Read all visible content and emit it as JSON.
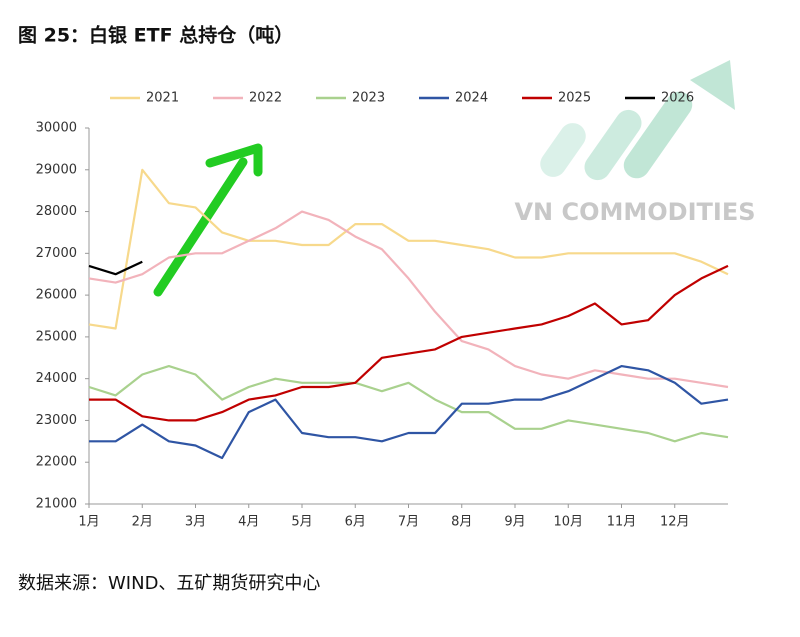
{
  "chart_data": {
    "type": "line",
    "title": "图 25：白银 ETF 总持仓（吨）",
    "source": "数据来源：WIND、五矿期货研究中心",
    "watermark": "VN COMMODITIES",
    "legend": "top",
    "grid": false,
    "x": [
      1,
      1.5,
      2,
      2.5,
      3,
      3.5,
      4,
      4.5,
      5,
      5.5,
      6,
      6.5,
      7,
      7.5,
      8,
      8.5,
      9,
      9.5,
      10,
      10.5,
      11,
      11.5,
      12,
      12.5,
      13
    ],
    "xlim": [
      1,
      13
    ],
    "xticks": [
      {
        "value": 1,
        "label": "1月"
      },
      {
        "value": 2,
        "label": "2月"
      },
      {
        "value": 3,
        "label": "3月"
      },
      {
        "value": 4,
        "label": "4月"
      },
      {
        "value": 5,
        "label": "5月"
      },
      {
        "value": 6,
        "label": "6月"
      },
      {
        "value": 7,
        "label": "7月"
      },
      {
        "value": 8,
        "label": "8月"
      },
      {
        "value": 9,
        "label": "9月"
      },
      {
        "value": 10,
        "label": "10月"
      },
      {
        "value": 11,
        "label": "11月"
      },
      {
        "value": 12,
        "label": "12月"
      }
    ],
    "ylim": [
      21000,
      30000
    ],
    "yticks": [
      21000,
      22000,
      23000,
      24000,
      25000,
      26000,
      27000,
      28000,
      29000,
      30000
    ],
    "series": [
      {
        "name": "2021",
        "color": "#f7d98c",
        "values": [
          25300,
          25200,
          29000,
          28200,
          28100,
          27500,
          27300,
          27300,
          27200,
          27200,
          27700,
          27700,
          27300,
          27300,
          27200,
          27100,
          26900,
          26900,
          27000,
          27000,
          27000,
          27000,
          27000,
          26800,
          26500
        ]
      },
      {
        "name": "2022",
        "color": "#f2b3bb",
        "values": [
          26400,
          26300,
          26500,
          26900,
          27000,
          27000,
          27300,
          27600,
          28000,
          27800,
          27400,
          27100,
          26400,
          25600,
          24900,
          24700,
          24300,
          24100,
          24000,
          24200,
          24100,
          24000,
          24000,
          23900,
          23800
        ]
      },
      {
        "name": "2023",
        "color": "#a9d18e",
        "values": [
          23800,
          23600,
          24100,
          24300,
          24100,
          23500,
          23800,
          24000,
          23900,
          23900,
          23900,
          23700,
          23900,
          23500,
          23200,
          23200,
          22800,
          22800,
          23000,
          22900,
          22800,
          22700,
          22500,
          22700,
          22600
        ]
      },
      {
        "name": "2024",
        "color": "#2f55a4",
        "values": [
          22500,
          22500,
          22900,
          22500,
          22400,
          22100,
          23200,
          23500,
          22700,
          22600,
          22600,
          22500,
          22700,
          22700,
          23400,
          23400,
          23500,
          23500,
          23700,
          24000,
          24300,
          24200,
          23900,
          23400,
          23500
        ]
      },
      {
        "name": "2025",
        "color": "#c00000",
        "values": [
          23500,
          23500,
          23100,
          23000,
          23000,
          23200,
          23500,
          23600,
          23800,
          23800,
          23900,
          24500,
          24600,
          24700,
          25000,
          25100,
          25200,
          25300,
          25500,
          25800,
          25300,
          25400,
          26000,
          26400,
          26700
        ]
      },
      {
        "name": "2026",
        "color": "#000000",
        "values": [
          26700,
          26500,
          26800,
          null,
          null,
          null,
          null,
          null,
          null,
          null,
          null,
          null,
          null,
          null,
          null,
          null,
          null,
          null,
          null,
          null,
          null,
          null,
          null,
          null,
          null
        ]
      }
    ]
  }
}
